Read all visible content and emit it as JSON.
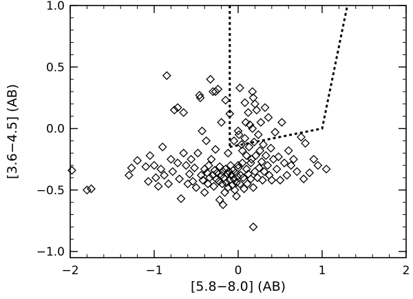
{
  "chart_data": {
    "type": "scatter",
    "title": "",
    "xlabel": "[5.8−8.0] (AB)",
    "ylabel": "[3.6−4.5] (AB)",
    "xlim": [
      -2,
      2
    ],
    "ylim": [
      -1.05,
      1.0
    ],
    "x_ticks": [
      -2,
      -1,
      0,
      1,
      2
    ],
    "x_tick_labels": [
      "−2",
      "−1",
      "0",
      "1",
      "2"
    ],
    "y_ticks": [
      -1.0,
      -0.5,
      0.0,
      0.5,
      1.0
    ],
    "y_tick_labels": [
      "−1.0",
      "−0.5",
      "0.0",
      "0.5",
      "1.0"
    ],
    "grid": false,
    "marker": "open-diamond",
    "series": [
      {
        "points": [
          [
            -1.98,
            -0.34
          ],
          [
            -1.8,
            -0.5
          ],
          [
            -1.75,
            -0.49
          ],
          [
            -1.3,
            -0.38
          ],
          [
            -1.27,
            -0.32
          ],
          [
            -1.2,
            -0.26
          ],
          [
            -1.1,
            -0.31
          ],
          [
            -1.07,
            -0.43
          ],
          [
            -1.05,
            -0.22
          ],
          [
            -1.0,
            -0.3
          ],
          [
            -0.98,
            -0.4
          ],
          [
            -0.95,
            -0.47
          ],
          [
            -0.92,
            -0.33
          ],
          [
            -0.9,
            -0.15
          ],
          [
            -0.88,
            -0.38
          ],
          [
            -0.85,
            0.43
          ],
          [
            -0.83,
            -0.45
          ],
          [
            -0.8,
            -0.25
          ],
          [
            -0.78,
            -0.35
          ],
          [
            -0.76,
            0.15
          ],
          [
            -0.72,
            -0.28
          ],
          [
            -0.72,
            0.17
          ],
          [
            -0.7,
            -0.41
          ],
          [
            -0.68,
            -0.57
          ],
          [
            -0.65,
            -0.2
          ],
          [
            -0.65,
            0.13
          ],
          [
            -0.62,
            -0.3
          ],
          [
            -0.6,
            -0.45
          ],
          [
            -0.58,
            -0.37
          ],
          [
            -0.56,
            -0.25
          ],
          [
            -0.54,
            -0.43
          ],
          [
            -0.52,
            -0.32
          ],
          [
            -0.5,
            -0.48
          ],
          [
            -0.48,
            -0.2
          ],
          [
            -0.46,
            0.27
          ],
          [
            -0.45,
            0.25
          ],
          [
            -0.44,
            -0.38
          ],
          [
            -0.43,
            -0.02
          ],
          [
            -0.42,
            -0.42
          ],
          [
            -0.4,
            -0.33
          ],
          [
            -0.4,
            -0.52
          ],
          [
            -0.38,
            -0.1
          ],
          [
            -0.37,
            -0.36
          ],
          [
            -0.36,
            -0.45
          ],
          [
            -0.35,
            -0.3
          ],
          [
            -0.34,
            -0.4
          ],
          [
            -0.33,
            0.4
          ],
          [
            -0.32,
            -0.25
          ],
          [
            -0.3,
            -0.38
          ],
          [
            -0.3,
            0.3
          ],
          [
            -0.29,
            -0.47
          ],
          [
            -0.28,
            -0.34
          ],
          [
            -0.27,
            0.3
          ],
          [
            -0.27,
            -0.17
          ],
          [
            -0.26,
            -0.41
          ],
          [
            -0.25,
            -0.36
          ],
          [
            -0.24,
            0.32
          ],
          [
            -0.23,
            -0.43
          ],
          [
            -0.22,
            -0.31
          ],
          [
            -0.22,
            -0.58
          ],
          [
            -0.2,
            -0.38
          ],
          [
            -0.2,
            0.05
          ],
          [
            -0.19,
            -0.45
          ],
          [
            -0.18,
            -0.35
          ],
          [
            -0.17,
            -0.4
          ],
          [
            -0.16,
            -0.52
          ],
          [
            -0.15,
            -0.33
          ],
          [
            -0.15,
            0.23
          ],
          [
            -0.14,
            -0.44
          ],
          [
            -0.13,
            -0.37
          ],
          [
            -0.12,
            -0.2
          ],
          [
            -0.12,
            -0.48
          ],
          [
            -0.11,
            -0.35
          ],
          [
            -0.1,
            -0.42
          ],
          [
            -0.1,
            0.12
          ],
          [
            -0.09,
            -0.3
          ],
          [
            -0.08,
            -0.38
          ],
          [
            -0.07,
            -0.46
          ],
          [
            -0.06,
            -0.34
          ],
          [
            -0.05,
            -0.41
          ],
          [
            -0.05,
            -0.1
          ],
          [
            -0.04,
            -0.5
          ],
          [
            -0.03,
            -0.36
          ],
          [
            -0.02,
            -0.44
          ],
          [
            -0.02,
            -0.55
          ],
          [
            -0.01,
            -0.39
          ],
          [
            0.0,
            -0.02
          ],
          [
            0.0,
            -0.32
          ],
          [
            0.01,
            -0.05
          ],
          [
            0.02,
            0.33
          ],
          [
            0.02,
            -0.45
          ],
          [
            0.03,
            -0.38
          ],
          [
            0.04,
            -0.13
          ],
          [
            0.05,
            -0.28
          ],
          [
            0.05,
            -0.18
          ],
          [
            0.06,
            -0.4
          ],
          [
            0.07,
            -0.49
          ],
          [
            0.08,
            -0.08
          ],
          [
            0.08,
            0.21
          ],
          [
            0.09,
            0.05
          ],
          [
            0.1,
            -0.33
          ],
          [
            0.1,
            -0.22
          ],
          [
            0.11,
            -0.45
          ],
          [
            0.12,
            -0.37
          ],
          [
            0.12,
            0.13
          ],
          [
            0.13,
            -0.15
          ],
          [
            0.14,
            0.03
          ],
          [
            0.15,
            -0.28
          ],
          [
            0.15,
            -0.41
          ],
          [
            0.16,
            -0.25
          ],
          [
            0.17,
            0.0
          ],
          [
            0.17,
            0.3
          ],
          [
            0.18,
            -0.48
          ],
          [
            0.19,
            -0.11
          ],
          [
            0.2,
            -0.35
          ],
          [
            0.2,
            0.2
          ],
          [
            0.21,
            -0.22
          ],
          [
            0.22,
            0.15
          ],
          [
            0.23,
            -0.4
          ],
          [
            0.24,
            -0.05
          ],
          [
            0.25,
            -0.32
          ],
          [
            0.26,
            -0.18
          ],
          [
            0.27,
            0.05
          ],
          [
            0.28,
            -0.27
          ],
          [
            0.29,
            -0.42
          ],
          [
            0.3,
            -0.13
          ],
          [
            0.31,
            -0.35
          ],
          [
            0.32,
            0.17
          ],
          [
            0.33,
            -0.22
          ],
          [
            0.35,
            -0.3
          ],
          [
            0.36,
            0.09
          ],
          [
            0.37,
            -0.38
          ],
          [
            0.39,
            -0.16
          ],
          [
            0.4,
            -0.42
          ],
          [
            0.42,
            -0.25
          ],
          [
            0.44,
            -0.03
          ],
          [
            0.46,
            -0.33
          ],
          [
            0.48,
            -0.23
          ],
          [
            0.5,
            -0.42
          ],
          [
            0.52,
            0.05
          ],
          [
            0.55,
            -0.28
          ],
          [
            0.58,
            -0.38
          ],
          [
            0.6,
            -0.18
          ],
          [
            0.63,
            -0.3
          ],
          [
            0.66,
            -0.25
          ],
          [
            0.7,
            -0.35
          ],
          [
            0.75,
            -0.07
          ],
          [
            0.78,
            -0.41
          ],
          [
            0.8,
            -0.12
          ],
          [
            0.85,
            -0.36
          ],
          [
            0.9,
            -0.25
          ],
          [
            0.95,
            -0.3
          ],
          [
            1.05,
            -0.33
          ],
          [
            0.18,
            0.25
          ],
          [
            -0.18,
            -0.62
          ],
          [
            0.18,
            -0.8
          ],
          [
            0.0,
            -0.3
          ]
        ]
      }
    ],
    "annotations": [
      {
        "kind": "dashed-line",
        "points": [
          [
            -0.1,
            1.0
          ],
          [
            -0.1,
            -0.15
          ]
        ]
      },
      {
        "kind": "dashed-line",
        "points": [
          [
            -0.1,
            -0.15
          ],
          [
            1.0,
            0.0
          ],
          [
            1.3,
            1.0
          ]
        ]
      }
    ]
  }
}
